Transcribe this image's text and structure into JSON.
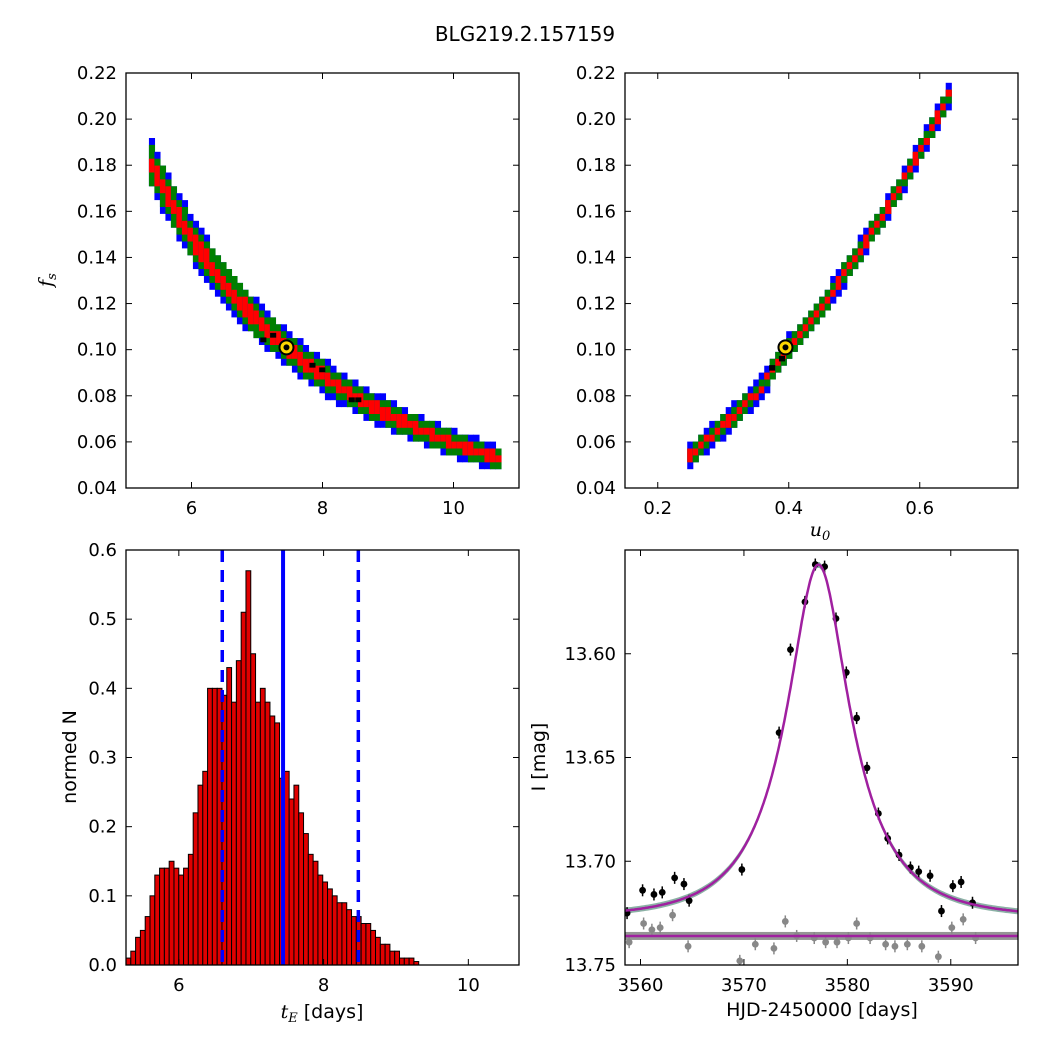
{
  "figure": {
    "title": "BLG219.2.157159",
    "colors": {
      "blue_level": "#0000ff",
      "green_level": "#008000",
      "red_level": "#ff0000",
      "best_fit_marker": "#ffd700",
      "hist_bar": "#e00000",
      "vline": "#0000ff",
      "model_curve": "#a020a0",
      "data_black": "#000000",
      "data_grey": "#888888"
    }
  },
  "chart_data": [
    {
      "id": "panel_tE_fs",
      "type": "heatmap",
      "xlabel": "",
      "ylabel": "f_s",
      "xlim": [
        5,
        11
      ],
      "ylim": [
        0.04,
        0.22
      ],
      "xticks": [
        6,
        8,
        10
      ],
      "yticks": [
        0.04,
        0.06,
        0.08,
        0.1,
        0.12,
        0.14,
        0.16,
        0.18,
        0.2,
        0.22
      ],
      "yticklabels": [
        "0.04",
        "0.06",
        "0.08",
        "0.10",
        "0.12",
        "0.14",
        "0.16",
        "0.18",
        "0.20",
        "0.22"
      ],
      "confidence_band": {
        "relation": "fs = 0.101 * (7.45 / tE)^1.8",
        "tE_range": [
          5.35,
          10.7
        ]
      },
      "best_fit": {
        "x": 7.45,
        "y": 0.101
      }
    },
    {
      "id": "panel_u0_fs",
      "type": "heatmap",
      "xlabel": "u_0",
      "ylabel": "",
      "xlim": [
        0.15,
        0.75
      ],
      "ylim": [
        0.04,
        0.22
      ],
      "xticks": [
        0.2,
        0.4,
        0.6
      ],
      "xticklabels": [
        "0.2",
        "0.4",
        "0.6"
      ],
      "yticks": [
        0.04,
        0.06,
        0.08,
        0.1,
        0.12,
        0.14,
        0.16,
        0.18,
        0.2,
        0.22
      ],
      "yticklabels": [
        "0.04",
        "0.06",
        "0.08",
        "0.10",
        "0.12",
        "0.14",
        "0.16",
        "0.18",
        "0.20",
        "0.22"
      ],
      "confidence_band": {
        "points": [
          [
            0.245,
            0.054
          ],
          [
            0.3,
            0.068
          ],
          [
            0.35,
            0.082
          ],
          [
            0.395,
            0.101
          ],
          [
            0.45,
            0.12
          ],
          [
            0.5,
            0.141
          ],
          [
            0.55,
            0.163
          ],
          [
            0.6,
            0.188
          ],
          [
            0.645,
            0.213
          ]
        ]
      },
      "best_fit": {
        "x": 0.395,
        "y": 0.101
      }
    },
    {
      "id": "panel_hist_tE",
      "type": "bar",
      "xlabel": "[days]",
      "xlabel_symbol": "t_E",
      "ylabel": "normed N",
      "xlim": [
        5.27,
        10.7
      ],
      "ylim": [
        0,
        0.6
      ],
      "xticks": [
        6,
        8,
        10
      ],
      "yticks": [
        0.0,
        0.1,
        0.2,
        0.3,
        0.4,
        0.5,
        0.6
      ],
      "yticklabels": [
        "0.0",
        "0.1",
        "0.2",
        "0.3",
        "0.4",
        "0.5",
        "0.6"
      ],
      "bin_start": 5.27,
      "bin_width": 0.0663,
      "values": [
        0.01,
        0.02,
        0.04,
        0.05,
        0.07,
        0.1,
        0.13,
        0.14,
        0.14,
        0.15,
        0.14,
        0.13,
        0.14,
        0.16,
        0.22,
        0.26,
        0.28,
        0.4,
        0.4,
        0.4,
        0.39,
        0.43,
        0.38,
        0.44,
        0.51,
        0.57,
        0.45,
        0.38,
        0.4,
        0.38,
        0.36,
        0.35,
        0.27,
        0.28,
        0.24,
        0.26,
        0.22,
        0.19,
        0.16,
        0.15,
        0.13,
        0.12,
        0.11,
        0.1,
        0.09,
        0.09,
        0.08,
        0.07,
        0.07,
        0.06,
        0.06,
        0.05,
        0.04,
        0.03,
        0.03,
        0.02,
        0.02,
        0.01,
        0.01,
        0.01,
        0.005
      ],
      "vlines": [
        {
          "x": 7.44,
          "style": "solid"
        },
        {
          "x": 6.6,
          "style": "dashed"
        },
        {
          "x": 8.48,
          "style": "dashed"
        }
      ]
    },
    {
      "id": "panel_lightcurve",
      "type": "scatter",
      "xlabel": "HJD-2450000 [days]",
      "ylabel": "I [mag]",
      "xlim": [
        3558.5,
        3596.5
      ],
      "ylim": [
        13.75,
        13.55
      ],
      "xticks": [
        3560,
        3570,
        3580,
        3590
      ],
      "yticks": [
        13.6,
        13.65,
        13.7,
        13.75
      ],
      "yticklabels": [
        "13.60",
        "13.65",
        "13.70",
        "13.75"
      ],
      "model": {
        "t0": 3577.2,
        "tE": 7.45,
        "u0": 0.395,
        "fs": 0.101,
        "I_base": 13.727
      },
      "baseline_model": {
        "I": 13.736
      },
      "series": [
        {
          "color": "black",
          "x": [
            3558.7,
            3560.2,
            3561.3,
            3562.1,
            3563.3,
            3564.2,
            3564.7,
            3569.8,
            3573.4,
            3574.5,
            3575.9,
            3576.9,
            3577.8,
            3578.9,
            3579.9,
            3580.9,
            3581.9,
            3583.0,
            3583.9,
            3585.0,
            3586.1,
            3586.9,
            3588.0,
            3589.1,
            3590.2,
            3591.0,
            3592.1
          ],
          "y": [
            13.725,
            13.714,
            13.716,
            13.715,
            13.708,
            13.711,
            13.719,
            13.704,
            13.638,
            13.598,
            13.575,
            13.557,
            13.558,
            13.583,
            13.609,
            13.631,
            13.655,
            13.677,
            13.689,
            13.697,
            13.703,
            13.705,
            13.707,
            13.724,
            13.712,
            13.71,
            13.72
          ]
        },
        {
          "color": "grey",
          "x": [
            3558.9,
            3560.3,
            3561.1,
            3561.9,
            3563.1,
            3564.6,
            3569.6,
            3571.1,
            3572.9,
            3574.0,
            3575.1,
            3576.8,
            3577.9,
            3579.0,
            3580.1,
            3580.9,
            3582.2,
            3583.7,
            3584.6,
            3585.8,
            3587.2,
            3588.8,
            3590.1,
            3591.2,
            3592.4
          ],
          "y": [
            13.739,
            13.73,
            13.733,
            13.732,
            13.726,
            13.741,
            13.748,
            13.74,
            13.742,
            13.729,
            13.736,
            13.737,
            13.739,
            13.739,
            13.737,
            13.73,
            13.737,
            13.74,
            13.741,
            13.74,
            13.741,
            13.746,
            13.732,
            13.728,
            13.737
          ]
        }
      ]
    }
  ]
}
